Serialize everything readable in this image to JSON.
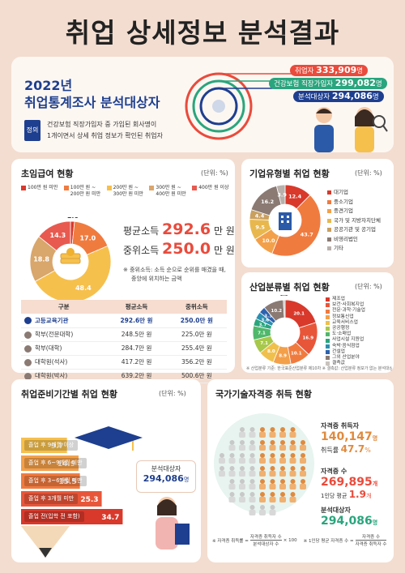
{
  "title": "취업 상세정보 분석결과",
  "header": {
    "year": "2022년",
    "subtitle": "취업통계조사 분석대상자",
    "def_badge": "정의",
    "def_text_1": "건강보험 직장가입자 중 가입된 회사명이",
    "def_text_2": "1개이면서 상세 취업 정보가 확인된 취업자",
    "tags": [
      {
        "label": "취업자",
        "value": "333,909",
        "unit": "명",
        "color": "#e94b3c"
      },
      {
        "label": "건강보험 직장가입자",
        "value": "299,082",
        "unit": "명",
        "color": "#2aa57d"
      },
      {
        "label": "분석대상자",
        "value": "294,086",
        "unit": "명",
        "color": "#1e3f8f"
      }
    ]
  },
  "salary": {
    "title": "초임급여 현황",
    "unit": "(단위: %)",
    "legend": [
      {
        "label": "100만 원 미만",
        "color": "#d83a2e"
      },
      {
        "label": "100만 원 ~ 200만 원 미만",
        "color": "#f07b3f"
      },
      {
        "label": "200만 원 ~ 300만 원 미만",
        "color": "#f6c04d"
      },
      {
        "label": "300만 원 ~ 400만 원 미만",
        "color": "#d9a66b"
      },
      {
        "label": "400만 원 이상",
        "color": "#e85a4f"
      }
    ],
    "avg_label": "평균소득",
    "avg_value": "292.6",
    "avg_unit": "만 원",
    "med_label": "중위소득",
    "med_value": "250.0",
    "med_unit": "만 원",
    "note_1": "※ 중위소득: 소득 순으로 순위를 매겼을 때,",
    "note_2": "중앙에 위치하는 금액",
    "table": {
      "headers": [
        "구분",
        "평균소득",
        "중위소득"
      ],
      "rows": [
        [
          "고등교육기관",
          "292.6만 원",
          "250.0만 원"
        ],
        [
          "학부(전문대학)",
          "248.5만 원",
          "225.0만 원"
        ],
        [
          "학부(대학)",
          "284.7만 원",
          "255.4만 원"
        ],
        [
          "대학원(석사)",
          "417.2만 원",
          "356.2만 원"
        ],
        [
          "대학원(박사)",
          "639.2만 원",
          "500.6만 원"
        ]
      ]
    }
  },
  "company": {
    "title": "기업유형별 취업 현황",
    "unit": "(단위: %)",
    "legend": [
      "대기업",
      "중소기업",
      "중견기업",
      "국가 및 지방자치단체",
      "공공기관 및 공기업",
      "비영리법인",
      "기타"
    ]
  },
  "industry": {
    "title": "산업분류별 취업 현황",
    "unit": "(단위: %)",
    "legend": [
      "제조업",
      "보건·사회복지업",
      "전문·과학·기술업",
      "정보통신업",
      "교육서비스업",
      "공공행정",
      "도·소매업",
      "사업시설 지원업",
      "숙박·음식점업",
      "건설업",
      "그외 산업분야",
      "결측값"
    ],
    "note": "※ 산업분류 기준: 한국표준산업분류 제10차   ※ 결측값: 산업분류 정보가 없는 분석대상자"
  },
  "prep": {
    "title": "취업준비기간별 취업 현황",
    "unit": "(단위: %)",
    "steps": [
      {
        "label": "졸업 후 9개월 이상",
        "value": "9.7"
      },
      {
        "label": "졸업 후 6~9개월 미만",
        "value": "14.9"
      },
      {
        "label": "졸업 후 3~6개월 미만",
        "value": "15.5"
      },
      {
        "label": "졸업 후 3개월 미만",
        "value": "25.3"
      },
      {
        "label": "졸업 전(입학 전 포함)",
        "value": "34.7"
      }
    ],
    "bubble_label": "분석대상자",
    "bubble_value": "294,086",
    "bubble_unit": "명"
  },
  "cert": {
    "title": "국가기술자격증 취득 현황",
    "holders_label": "자격증 취득자",
    "holders_value": "140,147",
    "holders_unit": "명",
    "rate_label": "취득률",
    "rate_value": "47.7",
    "rate_unit": "%",
    "count_label": "자격증 수",
    "count_value": "269,895",
    "count_unit": "개",
    "per_label": "1인당 평균",
    "per_value": "1.9",
    "per_unit": "개",
    "target_label": "분석대상자",
    "target_value": "294,086",
    "target_unit": "명",
    "formula_1_lhs": "※ 자격증 취득률 =",
    "formula_1_num": "자격증 취득자 수",
    "formula_1_den": "분석대상자 수",
    "formula_1_tail": "× 100",
    "formula_2_lhs": "※ 1인당 평균 자격증 수 =",
    "formula_2_num": "자격증 수",
    "formula_2_den": "자격증 취득자 수"
  },
  "chart_data": [
    {
      "type": "pie",
      "title": "초임급여 현황",
      "categories": [
        "100만 원 미만",
        "100만 원 ~ 200만 원 미만",
        "200만 원 ~ 300만 원 미만",
        "300만 원 ~ 400만 원 미만",
        "400만 원 이상"
      ],
      "values": [
        1.6,
        17.0,
        48.4,
        18.8,
        14.3
      ],
      "colors": [
        "#d83a2e",
        "#f07b3f",
        "#f6c04d",
        "#d9a66b",
        "#e85a4f"
      ]
    },
    {
      "type": "pie",
      "title": "기업유형별 취업 현황",
      "categories": [
        "대기업",
        "중소기업",
        "중견기업",
        "국가 및 지방자치단체",
        "공공기관 및 공기업",
        "비영리법인",
        "기타"
      ],
      "values": [
        12.4,
        43.7,
        10.0,
        9.5,
        4.4,
        16.2,
        3.9
      ],
      "colors": [
        "#d8392b",
        "#f07b3f",
        "#f3a04a",
        "#e8b84e",
        "#caa05f",
        "#8a7a73",
        "#b9b0ab"
      ]
    },
    {
      "type": "pie",
      "title": "산업분류별 취업 현황",
      "categories": [
        "제조업",
        "보건·사회복지업",
        "전문·과학·기술업",
        "정보통신업",
        "교육서비스업",
        "공공행정",
        "도·소매업",
        "사업시설 지원업",
        "숙박·음식점업",
        "건설업",
        "그외 산업분야",
        "결측값"
      ],
      "values": [
        20.1,
        16.9,
        10.1,
        8.9,
        8.0,
        7.1,
        7.1,
        3.7,
        3.6,
        3.3,
        10.2,
        0.9
      ],
      "colors": [
        "#d8392b",
        "#e8563a",
        "#f07b3f",
        "#f3a04a",
        "#f0c04c",
        "#a7c84a",
        "#4fb86b",
        "#2aa57d",
        "#2b8fb0",
        "#2d62ae",
        "#8a7a73",
        "#c9c2bd"
      ]
    },
    {
      "type": "bar",
      "title": "취업준비기간별 취업 현황",
      "categories": [
        "졸업 후 9개월 이상",
        "졸업 후 6~9개월 미만",
        "졸업 후 3~6개월 미만",
        "졸업 후 3개월 미만",
        "졸업 전(입학 전 포함)"
      ],
      "values": [
        9.7,
        14.9,
        15.5,
        25.3,
        34.7
      ]
    }
  ]
}
